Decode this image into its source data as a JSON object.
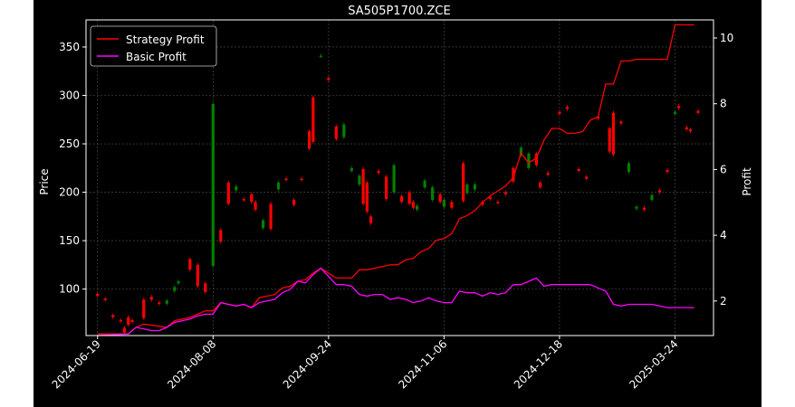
{
  "chart_data": {
    "type": "candlestick+line",
    "title": "SA505P1700.ZCE",
    "xlabel": "",
    "ylabel_left": "Price",
    "ylabel_right": "Profit",
    "grid": true,
    "legend_position": "top-left",
    "background": "#000000",
    "colors": {
      "up": "#008000",
      "down": "#ff0000",
      "strategy": "#ff0000",
      "basic": "#ff00ff",
      "grid": "#555555"
    },
    "x_tick_labels": [
      "2024-06-19",
      "2024-08-08",
      "2024-09-24",
      "2024-11-06",
      "2024-12-18",
      "2025-03-24"
    ],
    "x_tick_index": [
      0,
      30,
      60,
      90,
      120,
      150
    ],
    "ylim_price": [
      52,
      378
    ],
    "yticks_price": [
      100,
      150,
      200,
      250,
      300,
      350
    ],
    "ylim_profit": [
      0.95,
      10.55
    ],
    "yticks_profit": [
      2,
      4,
      6,
      8,
      10
    ],
    "legend": [
      "Strategy Profit",
      "Basic Profit"
    ],
    "candles": [
      {
        "i": 0,
        "o": 95,
        "c": 93
      },
      {
        "i": 2,
        "o": 90,
        "c": 89
      },
      {
        "i": 4,
        "o": 73,
        "c": 71
      },
      {
        "i": 6,
        "o": 68,
        "c": 67
      },
      {
        "i": 7,
        "o": 60,
        "c": 55
      },
      {
        "i": 8,
        "o": 71,
        "c": 63
      },
      {
        "i": 9,
        "o": 68,
        "c": 66
      },
      {
        "i": 12,
        "o": 89,
        "c": 70
      },
      {
        "i": 14,
        "o": 92,
        "c": 89
      },
      {
        "i": 16,
        "o": 86,
        "c": 85
      },
      {
        "i": 18,
        "o": 85,
        "c": 88
      },
      {
        "i": 20,
        "o": 98,
        "c": 102
      },
      {
        "i": 21,
        "o": 106,
        "c": 108
      },
      {
        "i": 24,
        "o": 131,
        "c": 120
      },
      {
        "i": 26,
        "o": 125,
        "c": 103
      },
      {
        "i": 28,
        "o": 106,
        "c": 97
      },
      {
        "i": 30,
        "o": 124,
        "c": 291
      },
      {
        "i": 32,
        "o": 161,
        "c": 149
      },
      {
        "i": 34,
        "o": 210,
        "c": 188
      },
      {
        "i": 36,
        "o": 202,
        "c": 206
      },
      {
        "i": 38,
        "o": 193,
        "c": 192
      },
      {
        "i": 40,
        "o": 198,
        "c": 190
      },
      {
        "i": 41,
        "o": 190,
        "c": 182
      },
      {
        "i": 43,
        "o": 163,
        "c": 171
      },
      {
        "i": 45,
        "o": 188,
        "c": 162
      },
      {
        "i": 47,
        "o": 203,
        "c": 210
      },
      {
        "i": 49,
        "o": 214,
        "c": 213
      },
      {
        "i": 51,
        "o": 192,
        "c": 187
      },
      {
        "i": 53,
        "o": 214,
        "c": 213
      },
      {
        "i": 55,
        "o": 263,
        "c": 245
      },
      {
        "i": 56,
        "o": 298,
        "c": 252
      },
      {
        "i": 58,
        "o": 341,
        "c": 341
      },
      {
        "i": 60,
        "o": 318,
        "c": 316
      },
      {
        "i": 62,
        "o": 268,
        "c": 255
      },
      {
        "i": 64,
        "o": 257,
        "c": 270
      },
      {
        "i": 66,
        "o": 222,
        "c": 225
      },
      {
        "i": 68,
        "o": 208,
        "c": 217
      },
      {
        "i": 69,
        "o": 224,
        "c": 188
      },
      {
        "i": 70,
        "o": 210,
        "c": 180
      },
      {
        "i": 71,
        "o": 175,
        "c": 168
      },
      {
        "i": 73,
        "o": 222,
        "c": 220
      },
      {
        "i": 75,
        "o": 216,
        "c": 193
      },
      {
        "i": 77,
        "o": 200,
        "c": 228
      },
      {
        "i": 79,
        "o": 196,
        "c": 190
      },
      {
        "i": 81,
        "o": 200,
        "c": 188
      },
      {
        "i": 82,
        "o": 190,
        "c": 184
      },
      {
        "i": 83,
        "o": 182,
        "c": 186
      },
      {
        "i": 85,
        "o": 205,
        "c": 212
      },
      {
        "i": 87,
        "o": 192,
        "c": 205
      },
      {
        "i": 89,
        "o": 198,
        "c": 190
      },
      {
        "i": 90,
        "o": 185,
        "c": 192
      },
      {
        "i": 92,
        "o": 190,
        "c": 184
      },
      {
        "i": 95,
        "o": 230,
        "c": 191
      },
      {
        "i": 96,
        "o": 199,
        "c": 208
      },
      {
        "i": 98,
        "o": 203,
        "c": 208
      },
      {
        "i": 100,
        "o": 190,
        "c": 187
      },
      {
        "i": 102,
        "o": 195,
        "c": 193
      },
      {
        "i": 104,
        "o": 190,
        "c": 189
      },
      {
        "i": 106,
        "o": 200,
        "c": 198
      },
      {
        "i": 108,
        "o": 225,
        "c": 211
      },
      {
        "i": 110,
        "o": 238,
        "c": 246
      },
      {
        "i": 112,
        "o": 225,
        "c": 240
      },
      {
        "i": 114,
        "o": 240,
        "c": 228
      },
      {
        "i": 115,
        "o": 210,
        "c": 205
      },
      {
        "i": 117,
        "o": 220,
        "c": 218
      },
      {
        "i": 120,
        "o": 283,
        "c": 281
      },
      {
        "i": 122,
        "o": 288,
        "c": 286
      },
      {
        "i": 125,
        "o": 224,
        "c": 222
      },
      {
        "i": 127,
        "o": 216,
        "c": 214
      },
      {
        "i": 130,
        "o": 278,
        "c": 276
      },
      {
        "i": 133,
        "o": 266,
        "c": 242
      },
      {
        "i": 134,
        "o": 282,
        "c": 239
      },
      {
        "i": 136,
        "o": 273,
        "c": 271
      },
      {
        "i": 138,
        "o": 221,
        "c": 230
      },
      {
        "i": 140,
        "o": 183,
        "c": 185
      },
      {
        "i": 142,
        "o": 184,
        "c": 182
      },
      {
        "i": 144,
        "o": 192,
        "c": 197
      },
      {
        "i": 146,
        "o": 202,
        "c": 200
      },
      {
        "i": 148,
        "o": 223,
        "c": 221
      },
      {
        "i": 150,
        "o": 281,
        "c": 283
      },
      {
        "i": 151,
        "o": 289,
        "c": 287
      },
      {
        "i": 153,
        "o": 267,
        "c": 265
      },
      {
        "i": 154,
        "o": 265,
        "c": 263
      },
      {
        "i": 156,
        "o": 284,
        "c": 282
      }
    ],
    "series": [
      {
        "name": "Strategy Profit",
        "points": [
          [
            0,
            1
          ],
          [
            8,
            1
          ],
          [
            10,
            1.2
          ],
          [
            12,
            1.3
          ],
          [
            18,
            1.2
          ],
          [
            20,
            1.4
          ],
          [
            22,
            1.45
          ],
          [
            24,
            1.5
          ],
          [
            26,
            1.6
          ],
          [
            28,
            1.7
          ],
          [
            30,
            1.7
          ],
          [
            32,
            1.95
          ],
          [
            34,
            1.9
          ],
          [
            36,
            1.85
          ],
          [
            38,
            1.9
          ],
          [
            40,
            1.8
          ],
          [
            42,
            2.1
          ],
          [
            44,
            2.15
          ],
          [
            46,
            2.2
          ],
          [
            48,
            2.4
          ],
          [
            50,
            2.45
          ],
          [
            52,
            2.6
          ],
          [
            54,
            2.65
          ],
          [
            56,
            2.85
          ],
          [
            58,
            3
          ],
          [
            60,
            2.85
          ],
          [
            62,
            2.7
          ],
          [
            64,
            2.7
          ],
          [
            66,
            2.7
          ],
          [
            68,
            2.95
          ],
          [
            70,
            2.95
          ],
          [
            72,
            3
          ],
          [
            74,
            3.05
          ],
          [
            76,
            3.1
          ],
          [
            78,
            3.1
          ],
          [
            80,
            3.25
          ],
          [
            82,
            3.3
          ],
          [
            84,
            3.5
          ],
          [
            86,
            3.6
          ],
          [
            88,
            3.85
          ],
          [
            90,
            3.9
          ],
          [
            92,
            4.05
          ],
          [
            94,
            4.5
          ],
          [
            96,
            4.6
          ],
          [
            98,
            4.75
          ],
          [
            100,
            5
          ],
          [
            102,
            5.2
          ],
          [
            104,
            5.35
          ],
          [
            106,
            5.5
          ],
          [
            108,
            5.75
          ],
          [
            110,
            6.5
          ],
          [
            112,
            6.2
          ],
          [
            114,
            6.35
          ],
          [
            116,
            6.9
          ],
          [
            118,
            7.25
          ],
          [
            120,
            7.25
          ],
          [
            122,
            7.1
          ],
          [
            124,
            7.1
          ],
          [
            126,
            7.15
          ],
          [
            128,
            7.5
          ],
          [
            130,
            7.6
          ],
          [
            132,
            8.6
          ],
          [
            134,
            8.6
          ],
          [
            136,
            9.3
          ],
          [
            138,
            9.3
          ],
          [
            140,
            9.35
          ],
          [
            142,
            9.35
          ],
          [
            144,
            9.35
          ],
          [
            146,
            9.35
          ],
          [
            148,
            9.35
          ],
          [
            150,
            10.4
          ],
          [
            152,
            10.4
          ],
          [
            155,
            10.4
          ]
        ]
      },
      {
        "name": "Basic Profit",
        "points": [
          [
            0,
            0.95
          ],
          [
            8,
            1
          ],
          [
            10,
            1.2
          ],
          [
            12,
            1.15
          ],
          [
            14,
            1.1
          ],
          [
            16,
            1.1
          ],
          [
            18,
            1.2
          ],
          [
            20,
            1.35
          ],
          [
            22,
            1.4
          ],
          [
            24,
            1.45
          ],
          [
            26,
            1.55
          ],
          [
            28,
            1.6
          ],
          [
            30,
            1.6
          ],
          [
            32,
            1.95
          ],
          [
            34,
            1.9
          ],
          [
            36,
            1.85
          ],
          [
            38,
            1.9
          ],
          [
            40,
            1.8
          ],
          [
            42,
            1.95
          ],
          [
            44,
            2.0
          ],
          [
            46,
            2.05
          ],
          [
            48,
            2.25
          ],
          [
            50,
            2.35
          ],
          [
            52,
            2.6
          ],
          [
            54,
            2.55
          ],
          [
            56,
            2.8
          ],
          [
            58,
            3
          ],
          [
            60,
            2.75
          ],
          [
            62,
            2.5
          ],
          [
            64,
            2.5
          ],
          [
            66,
            2.45
          ],
          [
            68,
            2.2
          ],
          [
            70,
            2.15
          ],
          [
            72,
            2.2
          ],
          [
            74,
            2.2
          ],
          [
            76,
            2.05
          ],
          [
            78,
            2.1
          ],
          [
            80,
            2.05
          ],
          [
            82,
            1.95
          ],
          [
            84,
            2.0
          ],
          [
            86,
            2.1
          ],
          [
            88,
            2.0
          ],
          [
            90,
            1.95
          ],
          [
            92,
            1.95
          ],
          [
            94,
            2.3
          ],
          [
            96,
            2.25
          ],
          [
            98,
            2.25
          ],
          [
            100,
            2.15
          ],
          [
            102,
            2.25
          ],
          [
            104,
            2.2
          ],
          [
            106,
            2.25
          ],
          [
            108,
            2.5
          ],
          [
            110,
            2.5
          ],
          [
            112,
            2.6
          ],
          [
            114,
            2.7
          ],
          [
            116,
            2.45
          ],
          [
            118,
            2.5
          ],
          [
            120,
            2.5
          ],
          [
            122,
            2.5
          ],
          [
            124,
            2.5
          ],
          [
            126,
            2.5
          ],
          [
            128,
            2.5
          ],
          [
            130,
            2.4
          ],
          [
            132,
            2.3
          ],
          [
            134,
            1.9
          ],
          [
            136,
            1.85
          ],
          [
            138,
            1.9
          ],
          [
            140,
            1.9
          ],
          [
            142,
            1.9
          ],
          [
            144,
            1.9
          ],
          [
            146,
            1.85
          ],
          [
            148,
            1.8
          ],
          [
            150,
            1.8
          ],
          [
            152,
            1.8
          ],
          [
            155,
            1.8
          ]
        ]
      }
    ]
  }
}
